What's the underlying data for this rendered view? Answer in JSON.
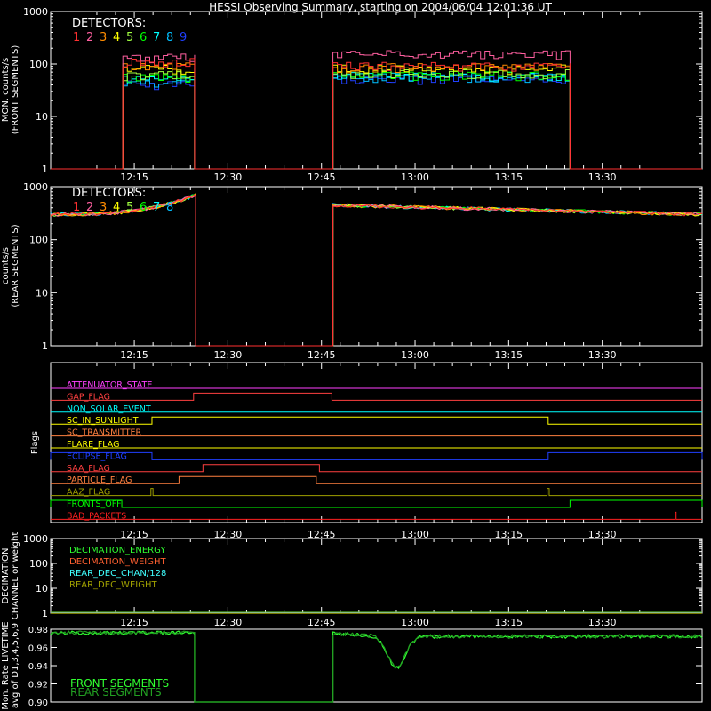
{
  "title": "HESSI Observing Summary, starting on 2004/06/04 12:01:36 UT",
  "time_ticks": [
    "12:15",
    "12:30",
    "12:45",
    "13:00",
    "13:15",
    "13:30"
  ],
  "colors": {
    "det": [
      "#ff3030",
      "#ff5fa0",
      "#ff8c00",
      "#ffff00",
      "#a0ff40",
      "#00ff00",
      "#00ffff",
      "#00bfff",
      "#2040ff"
    ],
    "front_seg": "#30ff30",
    "rear_seg": "#22a022"
  },
  "chart_data": [
    {
      "id": "front",
      "type": "line",
      "ylabel_lines": [
        "MON. counts/s",
        "(FRONT SEGMENTS)"
      ],
      "yscale": "log",
      "ylim": [
        1,
        1000
      ],
      "ytick_labels": [
        "1",
        "10",
        "100",
        "1000"
      ],
      "legend_title": "DETECTORS:",
      "legend_items": [
        "1",
        "2",
        "3",
        "4",
        "5",
        "6",
        "7",
        "8",
        "9"
      ],
      "segments": [
        {
          "start": "12:13:10",
          "end": "12:24:40",
          "levels": [
            110,
            130,
            90,
            80,
            60,
            55,
            50,
            45,
            40
          ]
        },
        {
          "start": "12:46:50",
          "end": "13:24:50",
          "levels": [
            90,
            150,
            85,
            80,
            65,
            60,
            58,
            55,
            50
          ]
        }
      ]
    },
    {
      "id": "rear",
      "type": "line",
      "ylabel_lines": [
        "counts/s",
        "(REAR SEGMENTS)"
      ],
      "yscale": "log",
      "ylim": [
        1,
        1000
      ],
      "ytick_labels": [
        "1",
        "10",
        "100",
        "1000"
      ],
      "legend_title": "DETECTORS:",
      "legend_items": [
        "1",
        "2",
        "3",
        "4",
        "5",
        "6",
        "7",
        "8"
      ],
      "segments": [
        {
          "start": "12:01:36",
          "end": "12:24:50",
          "from": 300,
          "to": 700
        },
        {
          "start": "12:46:50",
          "end": "13:46:00",
          "from": 450,
          "to": 300
        }
      ]
    },
    {
      "id": "flags",
      "type": "line",
      "ylabel": "Flags",
      "flags": [
        {
          "name": "ATTENUATOR_STATE",
          "color": "#ff40ff",
          "on": []
        },
        {
          "name": "GAP_FLAG",
          "color": "#ff4040",
          "on": [
            [
              "12:24:30",
              "12:46:40"
            ]
          ]
        },
        {
          "name": "NON_SOLAR_EVENT",
          "color": "#00ffff",
          "on": []
        },
        {
          "name": "SC_IN_SUNLIGHT",
          "color": "#ffff00",
          "on": [
            [
              "12:17:50",
              "13:21:20"
            ]
          ]
        },
        {
          "name": "SC_TRANSMITTER",
          "color": "#ff8040",
          "on": []
        },
        {
          "name": "FLARE_FLAG",
          "color": "#ffff00",
          "on": []
        },
        {
          "name": "ECLIPSE_FLAG",
          "color": "#2040ff",
          "on": [
            [
              "12:01:36",
              "12:17:50"
            ],
            [
              "13:21:20",
              "13:46:00"
            ]
          ]
        },
        {
          "name": "SAA_FLAG",
          "color": "#ff4040",
          "on": [
            [
              "12:26:00",
              "12:44:40"
            ]
          ]
        },
        {
          "name": "PARTICLE_FLAG",
          "color": "#ff8040",
          "on": [
            [
              "12:22:10",
              "12:44:10"
            ]
          ]
        },
        {
          "name": "AAZ_FLAG",
          "color": "#a0a000",
          "on": [
            [
              "12:17:40",
              "12:18:00"
            ],
            [
              "13:21:10",
              "13:21:30"
            ]
          ]
        },
        {
          "name": "FRONTS_OFF",
          "color": "#00ff00",
          "on": [
            [
              "12:01:36",
              "12:13:00"
            ],
            [
              "13:24:50",
              "13:46:00"
            ]
          ]
        },
        {
          "name": "BAD_PACKETS",
          "color": "#ff2020",
          "on": [
            [
              "13:41:40",
              "13:41:50"
            ]
          ]
        }
      ]
    },
    {
      "id": "decimation",
      "type": "line",
      "ylabel_lines": [
        "DECIMATION",
        "CHANNEL or weight"
      ],
      "yscale": "log",
      "ylim": [
        1,
        1000
      ],
      "ytick_labels": [
        "1",
        "10",
        "100",
        "1000"
      ],
      "series": [
        {
          "name": "DECIMATION_ENERGY",
          "color": "#30ff30",
          "value": 1
        },
        {
          "name": "DECIMATION_WEIGHT",
          "color": "#ff6030",
          "value": 1
        },
        {
          "name": "REAR_DEC_CHAN/128",
          "color": "#40ffff",
          "value": 1
        },
        {
          "name": "REAR_DEC_WEIGHT",
          "color": "#a0a000",
          "value": 1
        }
      ]
    },
    {
      "id": "livetime",
      "type": "line",
      "ylabel_lines": [
        "Mon. Rate LIVETIME",
        "avg of D1,3,4,5,6,9"
      ],
      "ylim": [
        0.9,
        0.98
      ],
      "ytick_labels": [
        "0.90",
        "0.92",
        "0.94",
        "0.96",
        "0.98"
      ],
      "legend_items": [
        "FRONT SEGMENTS",
        "REAR SEGMENTS"
      ],
      "segments": [
        {
          "start": "12:01:36",
          "end": "12:24:40",
          "level": 0.976
        },
        {
          "start": "12:46:50",
          "end": "13:46:00",
          "level": 0.972,
          "dip_time": "12:57:00",
          "dip_min": 0.938
        }
      ]
    }
  ]
}
